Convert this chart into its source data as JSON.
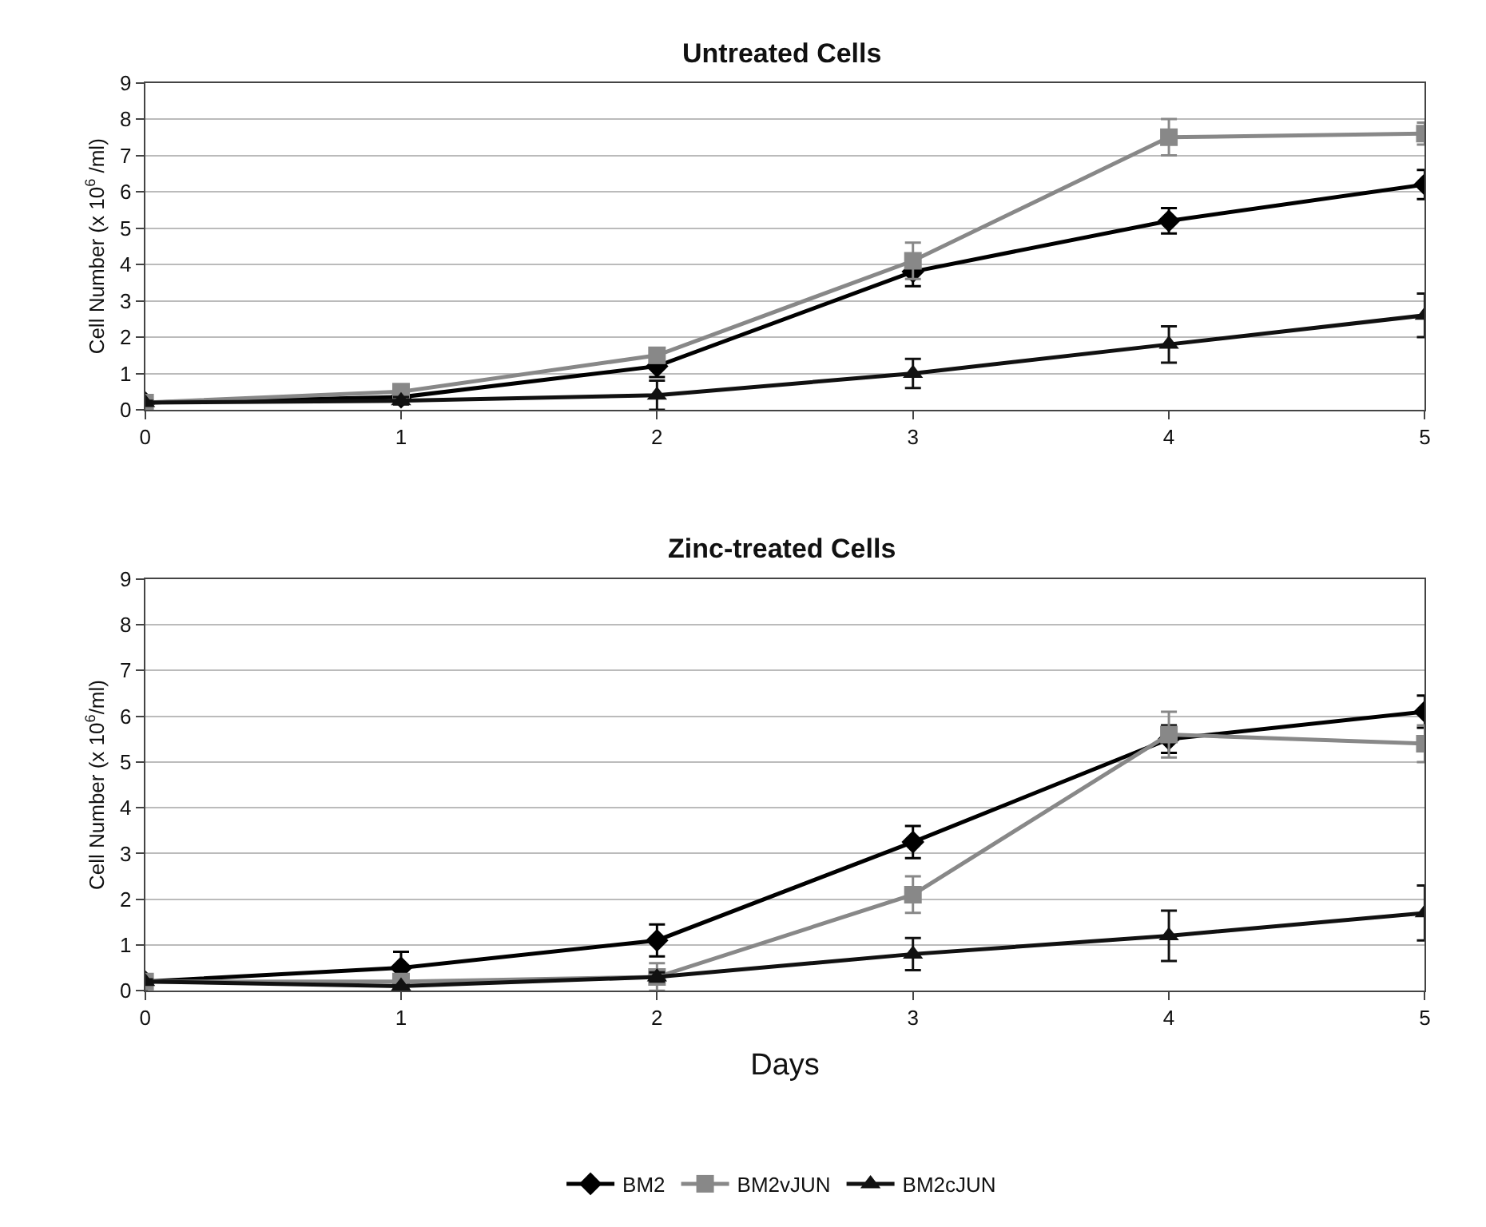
{
  "chart_data": [
    {
      "type": "line",
      "title": "Untreated Cells",
      "ylabel": "Cell Number (x 10$^{6}$ /ml)",
      "x": [
        0,
        1,
        2,
        3,
        4,
        5
      ],
      "xlim": [
        0,
        5
      ],
      "xticks": [
        0,
        1,
        2,
        3,
        4,
        5
      ],
      "ylim": [
        0,
        9
      ],
      "yticks": [
        0,
        1,
        2,
        3,
        4,
        5,
        6,
        7,
        8,
        9
      ],
      "grid": "y",
      "legend": "bottom",
      "line_style": "solid",
      "series": [
        {
          "name": "BM2",
          "color": "#000000",
          "marker": "diamond",
          "values": [
            0.2,
            0.35,
            1.2,
            3.8,
            5.2,
            6.2
          ],
          "errors": [
            0.05,
            0.1,
            0.3,
            0.4,
            0.35,
            0.4
          ]
        },
        {
          "name": "BM2vJUN",
          "color": "#888888",
          "marker": "square",
          "values": [
            0.2,
            0.5,
            1.5,
            4.1,
            7.5,
            7.6
          ],
          "errors": [
            0.05,
            0.1,
            0.2,
            0.5,
            0.5,
            0.3
          ]
        },
        {
          "name": "BM2cJUN",
          "color": "#111111",
          "marker": "triangle",
          "values": [
            0.2,
            0.25,
            0.4,
            1.0,
            1.8,
            2.6
          ],
          "errors": [
            0.05,
            0.1,
            0.4,
            0.4,
            0.5,
            0.6
          ]
        }
      ]
    },
    {
      "type": "line",
      "title": "Zinc-treated Cells",
      "xlabel": "Days",
      "ylabel": "Cell Number (x 10$^{6}$/ml)",
      "x": [
        0,
        1,
        2,
        3,
        4,
        5
      ],
      "xlim": [
        0,
        5
      ],
      "xticks": [
        0,
        1,
        2,
        3,
        4,
        5
      ],
      "ylim": [
        0,
        9
      ],
      "yticks": [
        0,
        1,
        2,
        3,
        4,
        5,
        6,
        7,
        8,
        9
      ],
      "grid": "y",
      "legend": "bottom",
      "line_style": "solid",
      "series": [
        {
          "name": "BM2",
          "color": "#000000",
          "marker": "diamond",
          "values": [
            0.2,
            0.5,
            1.1,
            3.25,
            5.5,
            6.1
          ],
          "errors": [
            0.05,
            0.35,
            0.35,
            0.35,
            0.3,
            0.35
          ]
        },
        {
          "name": "BM2vJUN",
          "color": "#888888",
          "marker": "square",
          "values": [
            0.2,
            0.2,
            0.3,
            2.1,
            5.6,
            5.4
          ],
          "errors": [
            0.05,
            0.1,
            0.3,
            0.4,
            0.5,
            0.4
          ]
        },
        {
          "name": "BM2cJUN",
          "color": "#111111",
          "marker": "triangle",
          "values": [
            0.2,
            0.1,
            0.3,
            0.8,
            1.2,
            1.7
          ],
          "errors": [
            0.05,
            null,
            0.1,
            0.35,
            0.55,
            0.6
          ]
        }
      ]
    }
  ]
}
